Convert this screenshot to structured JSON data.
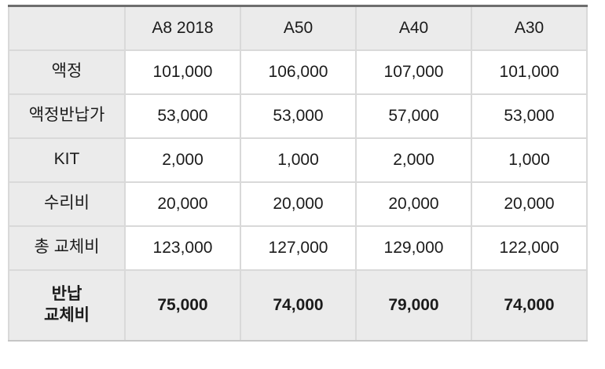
{
  "table": {
    "corner_label": "",
    "columns": [
      "A8 2018",
      "A50",
      "A40",
      "A30"
    ],
    "rows": [
      {
        "label": "액정",
        "values": [
          "101,000",
          "106,000",
          "107,000",
          "101,000"
        ]
      },
      {
        "label": "액정반납가",
        "values": [
          "53,000",
          "53,000",
          "57,000",
          "53,000"
        ]
      },
      {
        "label": "KIT",
        "values": [
          "2,000",
          "1,000",
          "2,000",
          "1,000"
        ]
      },
      {
        "label": "수리비",
        "values": [
          "20,000",
          "20,000",
          "20,000",
          "20,000"
        ]
      },
      {
        "label": "총 교체비",
        "values": [
          "123,000",
          "127,000",
          "129,000",
          "122,000"
        ]
      },
      {
        "label": "반납\n교체비",
        "values": [
          "75,000",
          "74,000",
          "79,000",
          "74,000"
        ]
      }
    ]
  },
  "chart_data": {
    "type": "table",
    "title": "",
    "categories": [
      "A8 2018",
      "A50",
      "A40",
      "A30"
    ],
    "rows": [
      {
        "label": "액정",
        "values": [
          101000,
          106000,
          107000,
          101000
        ]
      },
      {
        "label": "액정반납가",
        "values": [
          53000,
          53000,
          57000,
          53000
        ]
      },
      {
        "label": "KIT",
        "values": [
          2000,
          1000,
          2000,
          1000
        ]
      },
      {
        "label": "수리비",
        "values": [
          20000,
          20000,
          20000,
          20000
        ]
      },
      {
        "label": "총 교체비",
        "values": [
          123000,
          127000,
          129000,
          122000
        ]
      },
      {
        "label": "반납 교체비",
        "values": [
          75000,
          74000,
          79000,
          74000
        ]
      }
    ],
    "layout_hints": {
      "header_row_shaded": true,
      "label_column_shaded": true,
      "last_row_bold_shaded": true,
      "grid": true
    }
  },
  "colors": {
    "header_bg": "#ebebeb",
    "cell_bg": "#ffffff",
    "grid_border": "#d9d9d9",
    "top_border": "#6e6e6e",
    "bottom_border": "#c6c6c6",
    "text": "#1b1b1b"
  }
}
